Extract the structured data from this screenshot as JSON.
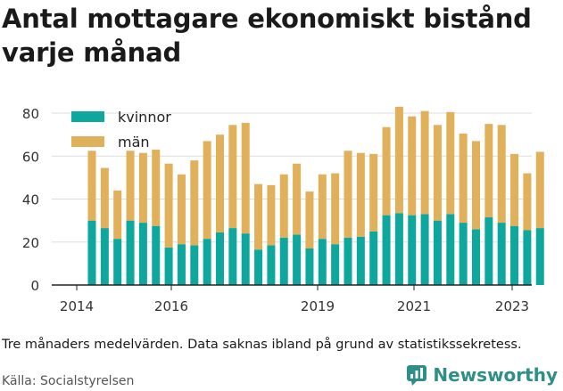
{
  "title": "Antal mottagare ekonomiskt bistånd varje månad",
  "note": "Tre månaders medelvärden. Data saknas ibland på grund av statistikssekretess.",
  "source": "Källa: Socialstyrelsen",
  "brand": {
    "name": "Newsworthy",
    "icon": "newsworthy-logo-icon",
    "color": "#2d8f88"
  },
  "colors": {
    "kvinnor": "#0ea79e",
    "man": "#e0b15a",
    "axis": "#222222",
    "grid": "#dddddd"
  },
  "chart_data": {
    "type": "bar",
    "stacked": true,
    "x_tick_labels": [
      "2014",
      "2016",
      "2019",
      "2021",
      "2023"
    ],
    "y_ticks": [
      0,
      20,
      40,
      60,
      80
    ],
    "ylim": [
      0,
      85
    ],
    "grid": true,
    "legend_position": "top-left",
    "series": [
      {
        "name": "kvinnor",
        "values": [
          30,
          26.5,
          21.5,
          30,
          29,
          27.5,
          17.5,
          19,
          18.5,
          21.5,
          24.5,
          26.5,
          24,
          16.5,
          18.5,
          22,
          23.5,
          17,
          21.5,
          19,
          22,
          22.5,
          25,
          32.5,
          33.5,
          32.5,
          33,
          30,
          33,
          29,
          26,
          31.5,
          29,
          27.5,
          25.5,
          26.5
        ]
      },
      {
        "name": "män",
        "values": [
          32.5,
          28,
          22.5,
          32.5,
          32.5,
          35.5,
          39,
          32.5,
          39.5,
          45.5,
          45.5,
          48,
          51.5,
          30.5,
          28,
          29.5,
          33,
          26.5,
          30,
          33,
          40.5,
          39,
          36,
          41,
          49.5,
          46,
          48,
          44.5,
          47.5,
          41.5,
          41,
          43.5,
          45.5,
          33.5,
          26.5,
          35.5
        ]
      }
    ]
  }
}
